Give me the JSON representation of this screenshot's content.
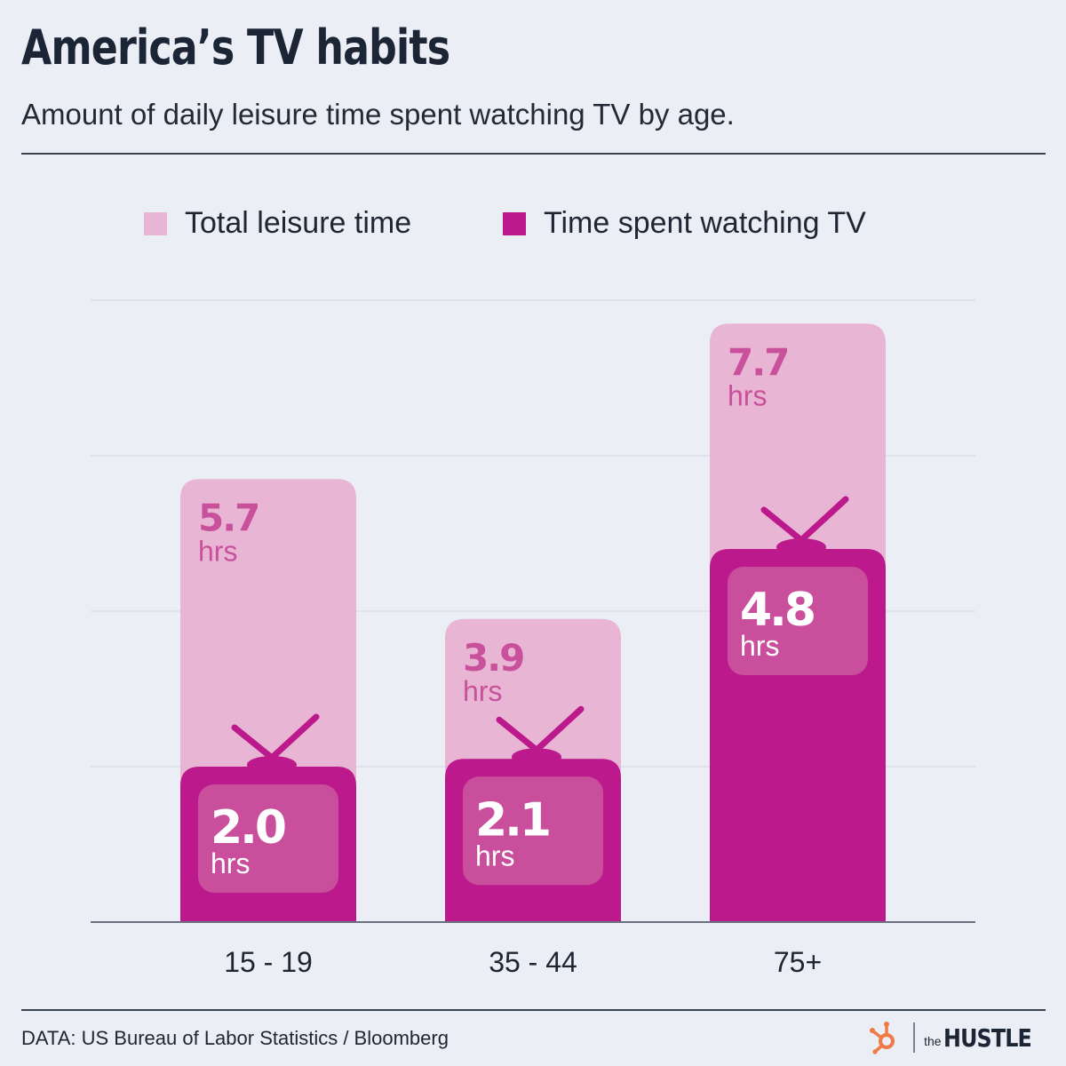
{
  "title": "America’s TV habits",
  "subtitle": "Amount of daily leisure time spent watching TV by age.",
  "source": "DATA: US Bureau of Labor Statistics / Bloomberg",
  "brand": {
    "small": "the",
    "big": "HUSTLE"
  },
  "colors": {
    "total": "#e8b6d4",
    "tv": "#bc1a8c",
    "screen": "#c94e9c",
    "total_label": "#c9519c",
    "tv_label": "#ffffff",
    "grid": "#d7dae4",
    "axis": "#6b7080",
    "background": "#eceef6"
  },
  "legend": [
    {
      "label": "Total leisure time",
      "color": "#e8b6d4"
    },
    {
      "label": "Time spent watching TV",
      "color": "#bc1a8c"
    }
  ],
  "chart_data": {
    "type": "bar",
    "categories": [
      "15 - 19",
      "35 - 44",
      "75+"
    ],
    "series": [
      {
        "name": "Total leisure time",
        "values": [
          5.7,
          3.9,
          7.7
        ]
      },
      {
        "name": "Time spent watching TV",
        "values": [
          2.0,
          2.1,
          4.8
        ]
      }
    ],
    "value_labels": {
      "total": [
        "5.7",
        "3.9",
        "7.7"
      ],
      "tv": [
        "2.0",
        "2.1",
        "4.8"
      ]
    },
    "unit": "hrs",
    "ylim": [
      0,
      8
    ],
    "grid": true,
    "legend_position": "top"
  }
}
